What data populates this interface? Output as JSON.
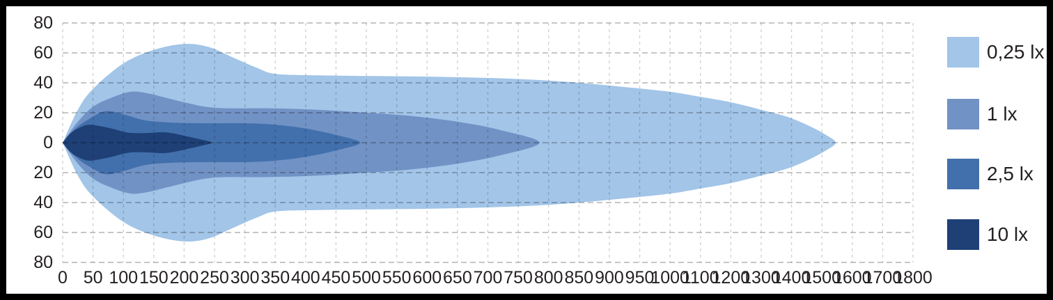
{
  "chart_data": {
    "type": "area",
    "subtype": "isolux-beam-pattern",
    "title": "",
    "xlabel": "",
    "ylabel": "",
    "grid": "dashed",
    "symmetric_about_zero": true,
    "x_ticks": [
      0,
      50,
      100,
      150,
      200,
      250,
      300,
      350,
      400,
      450,
      500,
      550,
      600,
      650,
      700,
      750,
      800,
      850,
      900,
      950,
      1000,
      1100,
      1200,
      1300,
      1400,
      1500,
      1600,
      1700,
      1800
    ],
    "y_tick_values": [
      80,
      60,
      40,
      20,
      0,
      -20,
      -40,
      -60,
      -80
    ],
    "y_tick_labels": [
      "80",
      "60",
      "40",
      "20",
      "0",
      "20",
      "40",
      "60",
      "80"
    ],
    "x_axis_note": "ticks evenly spaced; step 50 up to 1000, step 100 after",
    "series": [
      {
        "name": "0,25 lx",
        "color": "#a2c5e8",
        "reach_x": 1545,
        "max_half_width": 66,
        "points": [
          [
            0,
            0
          ],
          [
            25,
            22
          ],
          [
            50,
            36
          ],
          [
            100,
            53
          ],
          [
            150,
            62
          ],
          [
            200,
            66
          ],
          [
            240,
            64
          ],
          [
            280,
            57
          ],
          [
            320,
            50
          ],
          [
            350,
            46
          ],
          [
            420,
            45
          ],
          [
            520,
            44.5
          ],
          [
            620,
            44
          ],
          [
            720,
            43
          ],
          [
            820,
            41
          ],
          [
            930,
            37
          ],
          [
            1000,
            34
          ],
          [
            1090,
            31
          ],
          [
            1200,
            27
          ],
          [
            1300,
            22
          ],
          [
            1390,
            17
          ],
          [
            1460,
            11
          ],
          [
            1515,
            5
          ],
          [
            1545,
            0
          ]
        ]
      },
      {
        "name": "1 lx",
        "color": "#7192c5",
        "reach_x": 785,
        "max_half_width": 34,
        "points": [
          [
            0,
            0
          ],
          [
            25,
            14
          ],
          [
            50,
            24
          ],
          [
            80,
            30
          ],
          [
            112,
            34
          ],
          [
            140,
            33
          ],
          [
            170,
            30
          ],
          [
            200,
            27
          ],
          [
            235,
            24
          ],
          [
            270,
            23
          ],
          [
            340,
            23
          ],
          [
            420,
            22
          ],
          [
            500,
            20
          ],
          [
            570,
            18
          ],
          [
            650,
            14
          ],
          [
            720,
            8.5
          ],
          [
            785,
            0
          ]
        ]
      },
      {
        "name": "2,5 lx",
        "color": "#4270ac",
        "reach_x": 490,
        "max_half_width": 21,
        "points": [
          [
            0,
            0
          ],
          [
            20,
            9
          ],
          [
            40,
            15
          ],
          [
            70,
            21
          ],
          [
            100,
            19
          ],
          [
            135,
            15
          ],
          [
            175,
            13.5
          ],
          [
            230,
            13
          ],
          [
            300,
            13
          ],
          [
            350,
            12
          ],
          [
            400,
            9.5
          ],
          [
            455,
            4.7
          ],
          [
            490,
            0
          ]
        ]
      },
      {
        "name": "10 lx",
        "color": "#1e4077",
        "reach_x": 245,
        "max_half_width": 12,
        "points": [
          [
            0,
            0
          ],
          [
            12,
            6
          ],
          [
            25,
            9.5
          ],
          [
            42,
            12
          ],
          [
            62,
            11
          ],
          [
            82,
            9.3
          ],
          [
            110,
            6.6
          ],
          [
            140,
            6.5
          ],
          [
            165,
            7
          ],
          [
            185,
            6
          ],
          [
            207,
            4
          ],
          [
            227,
            2.2
          ],
          [
            245,
            0
          ]
        ]
      }
    ]
  },
  "legend": {
    "items": [
      {
        "label": "0,25 lx",
        "color": "#a2c5e8"
      },
      {
        "label": "1 lx",
        "color": "#7192c5"
      },
      {
        "label": "2,5 lx",
        "color": "#4270ac"
      },
      {
        "label": "10 lx",
        "color": "#1e4077"
      }
    ]
  },
  "colors": {
    "frame": "#000000",
    "background": "#ffffff",
    "text": "#231f20",
    "grid_horizontal": "rgba(0,0,0,0.30)",
    "grid_vertical": "rgba(0,0,0,0.18)"
  }
}
